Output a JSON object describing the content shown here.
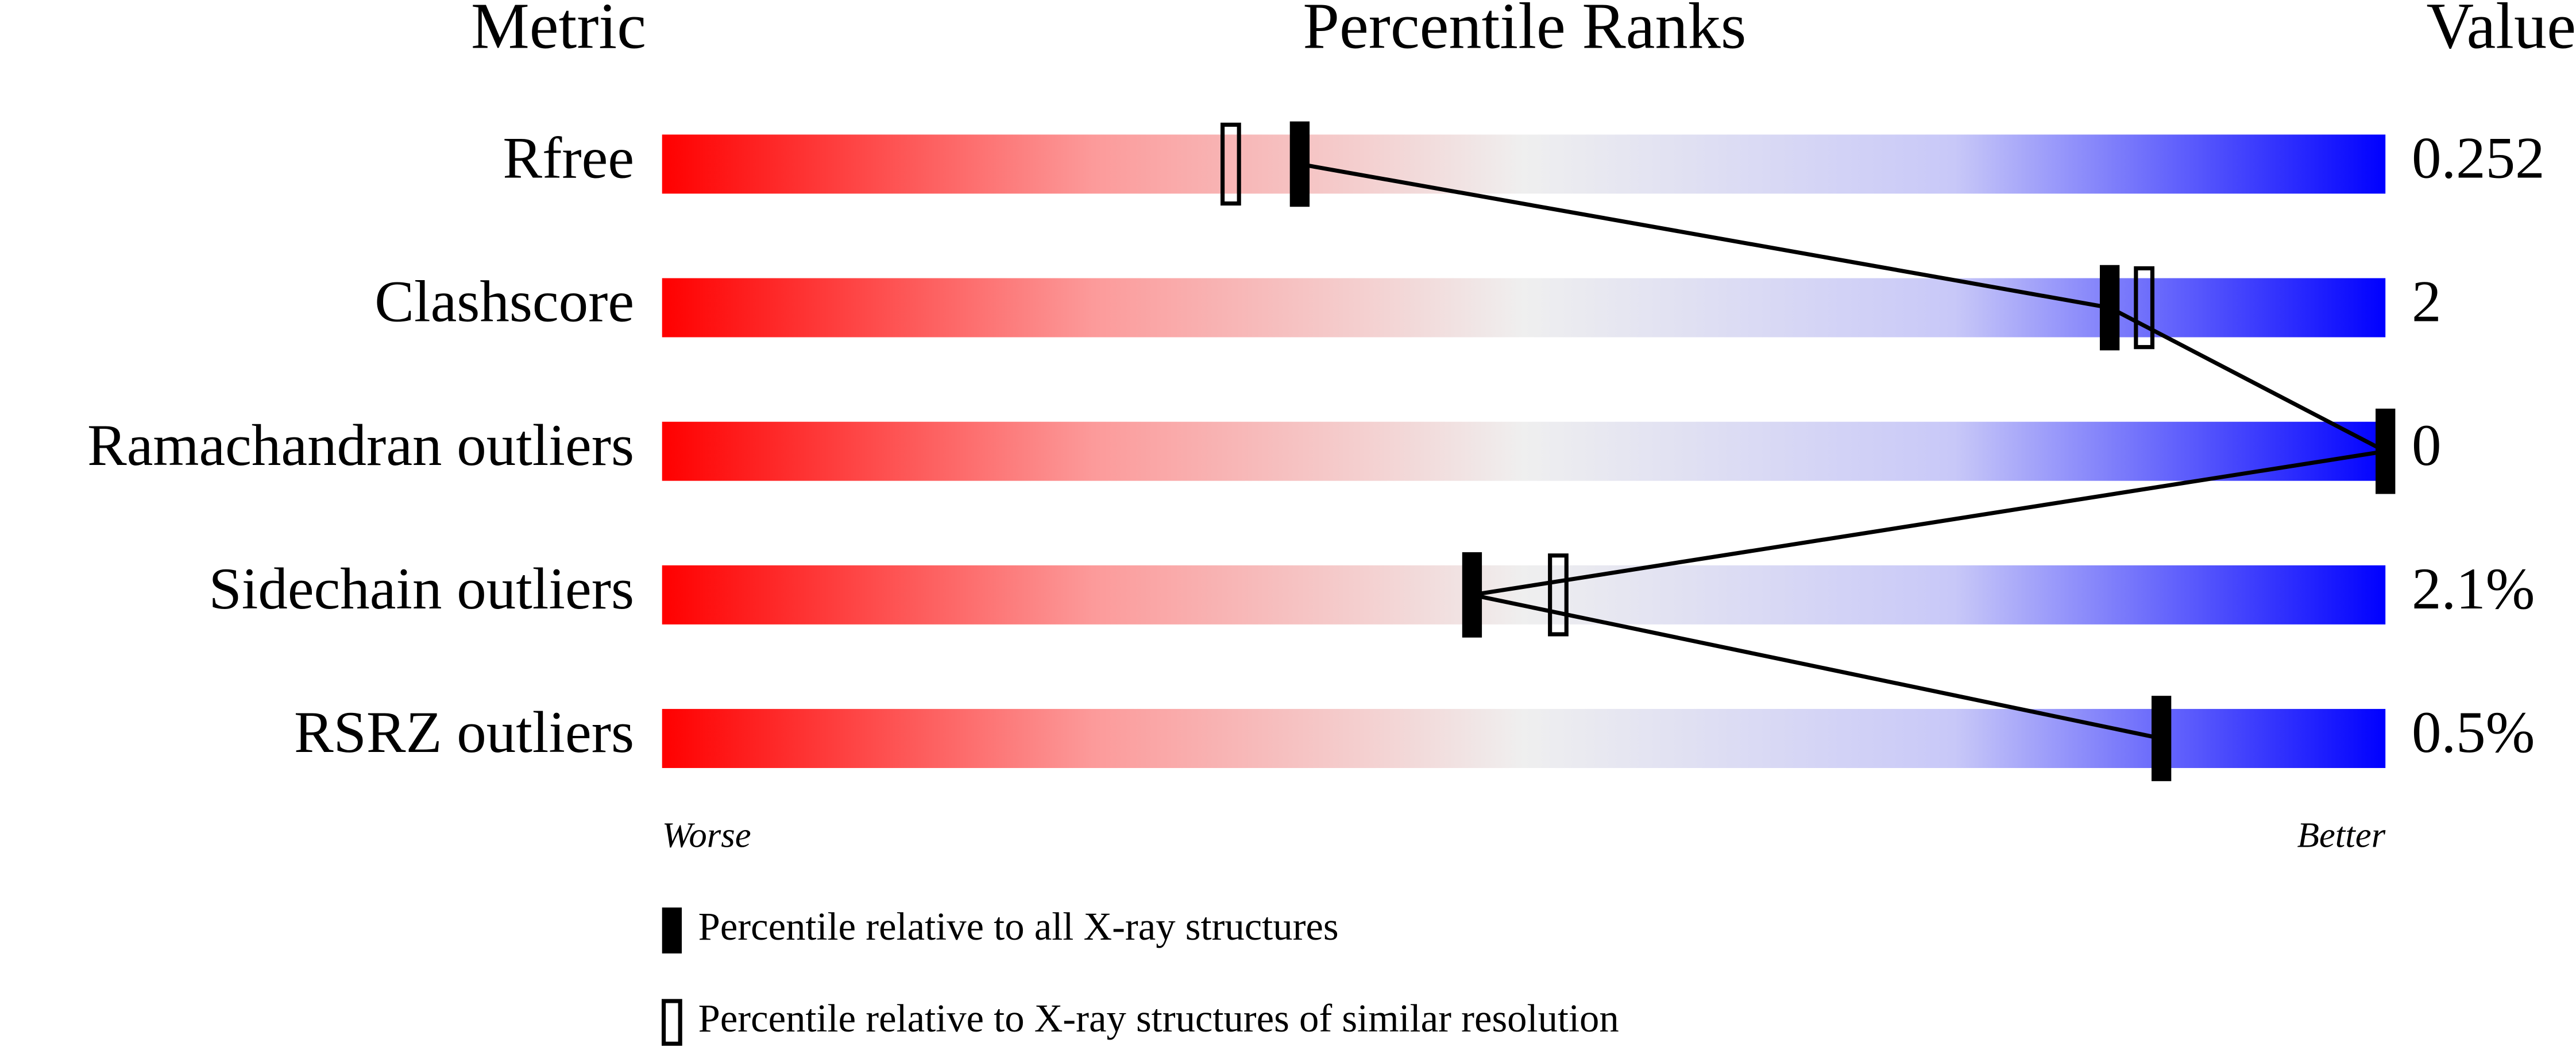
{
  "chart_data": {
    "type": "percentile",
    "headers": {
      "metric": "Metric",
      "percentile": "Percentile Ranks",
      "value": "Value"
    },
    "categories": [
      "Rfree",
      "Clashscore",
      "Ramachandran outliers",
      "Sidechain outliers",
      "RSRZ outliers"
    ],
    "metric_values": [
      "0.252",
      "2",
      "0",
      "2.1%",
      "0.5%"
    ],
    "xlim": [
      0,
      100
    ],
    "scale_labels": {
      "low": "Worse",
      "high": "Better"
    },
    "series": [
      {
        "name": "Percentile relative to all X-ray structures",
        "style": "filled",
        "color": "#000000",
        "values": [
          37,
          84,
          100,
          47,
          87
        ]
      },
      {
        "name": "Percentile relative to X-ray structures of similar resolution",
        "style": "open",
        "color": "#000000",
        "values": [
          33,
          86,
          null,
          52,
          null
        ]
      }
    ]
  }
}
